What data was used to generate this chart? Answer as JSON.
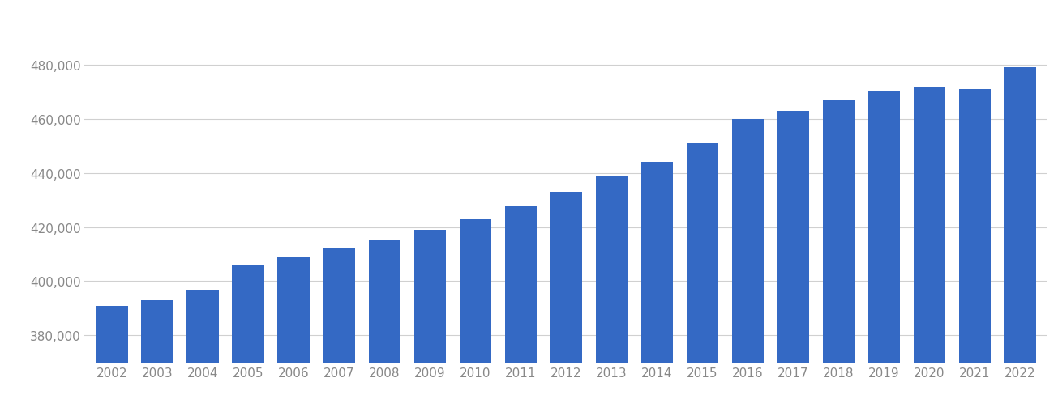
{
  "years": [
    2002,
    2003,
    2004,
    2005,
    2006,
    2007,
    2008,
    2009,
    2010,
    2011,
    2012,
    2013,
    2014,
    2015,
    2016,
    2017,
    2018,
    2019,
    2020,
    2021,
    2022
  ],
  "values": [
    391000,
    393000,
    397000,
    406000,
    409000,
    412000,
    415000,
    419000,
    423000,
    428000,
    433000,
    439000,
    444000,
    451000,
    460000,
    463000,
    467000,
    470000,
    472000,
    471000,
    479000
  ],
  "bar_color": "#3469c4",
  "background_color": "#ffffff",
  "ylim_min": 370000,
  "ylim_max": 492000,
  "yticks": [
    380000,
    400000,
    420000,
    440000,
    460000,
    480000
  ],
  "grid_color": "#d0d0d0",
  "tick_label_color": "#888888",
  "tick_fontsize": 11.0,
  "bar_bottom": 370000
}
